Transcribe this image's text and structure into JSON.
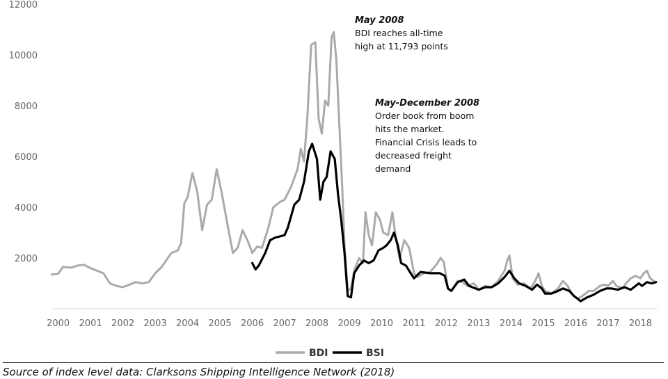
{
  "chart_data": {
    "type": "line",
    "title": "",
    "xlabel": "",
    "ylabel": "",
    "xlim": [
      1999.75,
      2018.55
    ],
    "ylim": [
      0,
      12000
    ],
    "y_ticks": [
      "2000",
      "4000",
      "6000",
      "8000",
      "10000",
      "12000"
    ],
    "y_tick_values": [
      2000,
      4000,
      6000,
      8000,
      10000,
      12000
    ],
    "x_ticks": [
      "2000",
      "2001",
      "2002",
      "2003",
      "2004",
      "2005",
      "2006",
      "2007",
      "2008",
      "2009",
      "2010",
      "2011",
      "2012",
      "2013",
      "2014",
      "2015",
      "2016",
      "2017",
      "2018"
    ],
    "x_tick_values": [
      2000,
      2001,
      2002,
      2003,
      2004,
      2005,
      2006,
      2007,
      2008,
      2009,
      2010,
      2011,
      2012,
      2013,
      2014,
      2015,
      2016,
      2017,
      2018
    ],
    "grid": false,
    "legend_position": "bottom-center",
    "series": [
      {
        "name": "BDI",
        "color": "#aaaaaa",
        "points": [
          [
            1999.8,
            1350
          ],
          [
            2000.0,
            1380
          ],
          [
            2000.15,
            1650
          ],
          [
            2000.4,
            1620
          ],
          [
            2000.6,
            1700
          ],
          [
            2000.8,
            1730
          ],
          [
            2001.0,
            1600
          ],
          [
            2001.2,
            1500
          ],
          [
            2001.4,
            1400
          ],
          [
            2001.6,
            1000
          ],
          [
            2001.8,
            900
          ],
          [
            2002.0,
            850
          ],
          [
            2002.2,
            950
          ],
          [
            2002.4,
            1050
          ],
          [
            2002.6,
            1000
          ],
          [
            2002.8,
            1050
          ],
          [
            2003.0,
            1400
          ],
          [
            2003.2,
            1650
          ],
          [
            2003.5,
            2200
          ],
          [
            2003.7,
            2300
          ],
          [
            2003.8,
            2600
          ],
          [
            2003.9,
            4150
          ],
          [
            2004.0,
            4400
          ],
          [
            2004.15,
            5350
          ],
          [
            2004.3,
            4600
          ],
          [
            2004.45,
            3100
          ],
          [
            2004.6,
            4100
          ],
          [
            2004.75,
            4300
          ],
          [
            2004.9,
            5500
          ],
          [
            2005.05,
            4600
          ],
          [
            2005.25,
            3200
          ],
          [
            2005.4,
            2200
          ],
          [
            2005.55,
            2400
          ],
          [
            2005.7,
            3100
          ],
          [
            2005.85,
            2700
          ],
          [
            2006.0,
            2200
          ],
          [
            2006.15,
            2450
          ],
          [
            2006.3,
            2400
          ],
          [
            2006.5,
            3200
          ],
          [
            2006.65,
            4000
          ],
          [
            2006.85,
            4200
          ],
          [
            2007.0,
            4300
          ],
          [
            2007.2,
            4800
          ],
          [
            2007.4,
            5500
          ],
          [
            2007.5,
            6300
          ],
          [
            2007.6,
            5800
          ],
          [
            2007.7,
            7500
          ],
          [
            2007.82,
            10400
          ],
          [
            2007.95,
            10500
          ],
          [
            2008.05,
            7500
          ],
          [
            2008.15,
            6900
          ],
          [
            2008.25,
            8200
          ],
          [
            2008.35,
            8000
          ],
          [
            2008.45,
            10700
          ],
          [
            2008.52,
            10900
          ],
          [
            2008.6,
            9800
          ],
          [
            2008.7,
            7000
          ],
          [
            2008.78,
            4800
          ],
          [
            2008.85,
            2500
          ],
          [
            2008.95,
            700
          ],
          [
            2009.05,
            800
          ],
          [
            2009.15,
            1500
          ],
          [
            2009.3,
            2000
          ],
          [
            2009.42,
            1800
          ],
          [
            2009.5,
            3800
          ],
          [
            2009.6,
            2900
          ],
          [
            2009.7,
            2500
          ],
          [
            2009.82,
            3800
          ],
          [
            2009.95,
            3500
          ],
          [
            2010.05,
            3000
          ],
          [
            2010.2,
            2900
          ],
          [
            2010.33,
            3800
          ],
          [
            2010.45,
            2700
          ],
          [
            2010.55,
            2000
          ],
          [
            2010.7,
            2700
          ],
          [
            2010.85,
            2400
          ],
          [
            2011.0,
            1400
          ],
          [
            2011.1,
            1250
          ],
          [
            2011.3,
            1400
          ],
          [
            2011.5,
            1450
          ],
          [
            2011.7,
            1750
          ],
          [
            2011.82,
            2000
          ],
          [
            2011.92,
            1850
          ],
          [
            2012.05,
            800
          ],
          [
            2012.15,
            700
          ],
          [
            2012.35,
            1100
          ],
          [
            2012.5,
            1050
          ],
          [
            2012.65,
            900
          ],
          [
            2012.85,
            1000
          ],
          [
            2013.0,
            750
          ],
          [
            2013.2,
            900
          ],
          [
            2013.4,
            850
          ],
          [
            2013.6,
            1100
          ],
          [
            2013.8,
            1500
          ],
          [
            2013.88,
            1900
          ],
          [
            2013.95,
            2100
          ],
          [
            2014.05,
            1200
          ],
          [
            2014.2,
            950
          ],
          [
            2014.4,
            1000
          ],
          [
            2014.6,
            800
          ],
          [
            2014.75,
            1100
          ],
          [
            2014.85,
            1400
          ],
          [
            2014.95,
            900
          ],
          [
            2015.05,
            700
          ],
          [
            2015.25,
            600
          ],
          [
            2015.45,
            800
          ],
          [
            2015.6,
            1100
          ],
          [
            2015.75,
            900
          ],
          [
            2015.9,
            550
          ],
          [
            2016.05,
            400
          ],
          [
            2016.2,
            500
          ],
          [
            2016.4,
            700
          ],
          [
            2016.55,
            700
          ],
          [
            2016.75,
            900
          ],
          [
            2016.9,
            950
          ],
          [
            2017.0,
            900
          ],
          [
            2017.15,
            1100
          ],
          [
            2017.25,
            900
          ],
          [
            2017.45,
            800
          ],
          [
            2017.55,
            1000
          ],
          [
            2017.7,
            1200
          ],
          [
            2017.85,
            1300
          ],
          [
            2018.0,
            1200
          ],
          [
            2018.1,
            1400
          ],
          [
            2018.2,
            1500
          ],
          [
            2018.3,
            1200
          ],
          [
            2018.45,
            1050
          ]
        ]
      },
      {
        "name": "BSI",
        "color": "#000000",
        "points": [
          [
            2006.0,
            1800
          ],
          [
            2006.1,
            1550
          ],
          [
            2006.2,
            1700
          ],
          [
            2006.4,
            2200
          ],
          [
            2006.55,
            2700
          ],
          [
            2006.7,
            2800
          ],
          [
            2006.85,
            2850
          ],
          [
            2007.0,
            2900
          ],
          [
            2007.1,
            3200
          ],
          [
            2007.3,
            4100
          ],
          [
            2007.45,
            4300
          ],
          [
            2007.6,
            5000
          ],
          [
            2007.75,
            6200
          ],
          [
            2007.85,
            6500
          ],
          [
            2008.0,
            5900
          ],
          [
            2008.1,
            4300
          ],
          [
            2008.2,
            5000
          ],
          [
            2008.3,
            5200
          ],
          [
            2008.42,
            6200
          ],
          [
            2008.55,
            5900
          ],
          [
            2008.65,
            4500
          ],
          [
            2008.75,
            3500
          ],
          [
            2008.85,
            2200
          ],
          [
            2008.95,
            500
          ],
          [
            2009.05,
            450
          ],
          [
            2009.15,
            1400
          ],
          [
            2009.3,
            1700
          ],
          [
            2009.45,
            1900
          ],
          [
            2009.6,
            1800
          ],
          [
            2009.75,
            1900
          ],
          [
            2009.9,
            2300
          ],
          [
            2010.05,
            2400
          ],
          [
            2010.15,
            2500
          ],
          [
            2010.28,
            2700
          ],
          [
            2010.38,
            3000
          ],
          [
            2010.5,
            2500
          ],
          [
            2010.6,
            1800
          ],
          [
            2010.75,
            1700
          ],
          [
            2010.85,
            1500
          ],
          [
            2011.0,
            1200
          ],
          [
            2011.2,
            1450
          ],
          [
            2011.5,
            1400
          ],
          [
            2011.8,
            1400
          ],
          [
            2011.95,
            1300
          ],
          [
            2012.05,
            800
          ],
          [
            2012.15,
            700
          ],
          [
            2012.35,
            1050
          ],
          [
            2012.55,
            1150
          ],
          [
            2012.7,
            900
          ],
          [
            2012.9,
            800
          ],
          [
            2013.0,
            750
          ],
          [
            2013.2,
            850
          ],
          [
            2013.4,
            850
          ],
          [
            2013.6,
            1000
          ],
          [
            2013.8,
            1250
          ],
          [
            2013.95,
            1500
          ],
          [
            2014.1,
            1200
          ],
          [
            2014.25,
            1000
          ],
          [
            2014.45,
            900
          ],
          [
            2014.65,
            750
          ],
          [
            2014.8,
            950
          ],
          [
            2014.95,
            800
          ],
          [
            2015.05,
            600
          ],
          [
            2015.25,
            600
          ],
          [
            2015.45,
            700
          ],
          [
            2015.6,
            800
          ],
          [
            2015.8,
            700
          ],
          [
            2015.95,
            500
          ],
          [
            2016.05,
            400
          ],
          [
            2016.15,
            300
          ],
          [
            2016.35,
            450
          ],
          [
            2016.55,
            550
          ],
          [
            2016.75,
            700
          ],
          [
            2016.95,
            800
          ],
          [
            2017.1,
            800
          ],
          [
            2017.3,
            750
          ],
          [
            2017.5,
            850
          ],
          [
            2017.7,
            750
          ],
          [
            2017.85,
            900
          ],
          [
            2017.95,
            1000
          ],
          [
            2018.05,
            900
          ],
          [
            2018.2,
            1050
          ],
          [
            2018.35,
            1000
          ],
          [
            2018.48,
            1050
          ]
        ]
      }
    ],
    "annotations": [
      {
        "name": "annotation-may-2008",
        "title": "May 2008",
        "lines": [
          "BDI reaches all-time",
          "high at 11,793 points"
        ]
      },
      {
        "name": "annotation-may-dec-2008",
        "title": "May-December 2008",
        "lines": [
          "Order book from boom",
          "hits the market.",
          "Financial Crisis leads to",
          "decreased freight",
          "demand"
        ]
      }
    ]
  },
  "source_text": "Source of index level data: Clarksons Shipping Intelligence Network (2018)"
}
